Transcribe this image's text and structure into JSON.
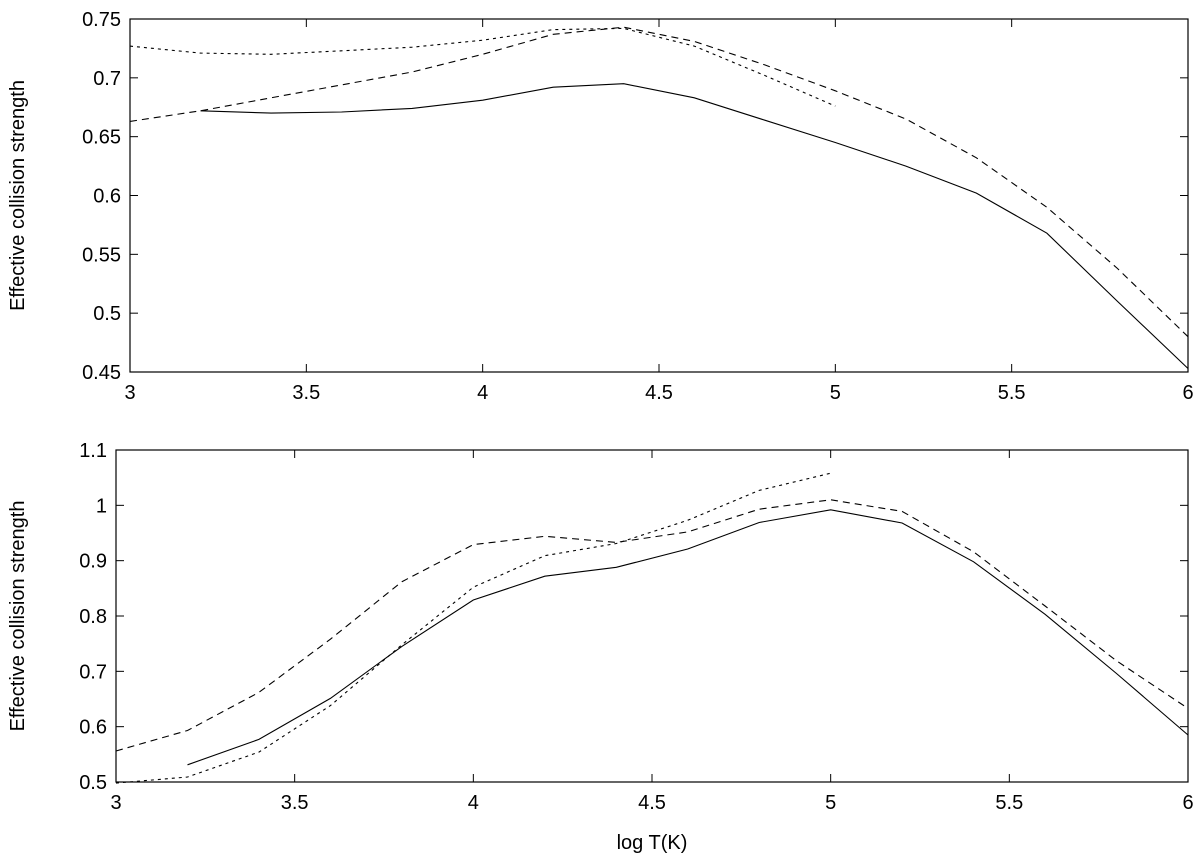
{
  "figure": {
    "xlabel": "log T(K)"
  },
  "chart_data": [
    {
      "type": "line",
      "title": "",
      "xlabel": "",
      "ylabel": "Effective collision strength",
      "xlim": [
        3,
        6
      ],
      "ylim": [
        0.45,
        0.75
      ],
      "xticks": [
        3,
        3.5,
        4,
        4.5,
        5,
        5.5,
        6
      ],
      "xtick_labels": [
        "3",
        "3.5",
        "4",
        "4.5",
        "5",
        "5.5",
        "6"
      ],
      "yticks": [
        0.45,
        0.5,
        0.55,
        0.6,
        0.65,
        0.7,
        0.75
      ],
      "ytick_labels": [
        "0.45",
        "0.5",
        "0.55",
        "0.6",
        "0.65",
        "0.7",
        "0.75"
      ],
      "grid": false,
      "series": [
        {
          "style": "solid",
          "x": [
            3.2,
            3.4,
            3.6,
            3.8,
            4.0,
            4.2,
            4.4,
            4.6,
            4.8,
            5.0,
            5.2,
            5.4,
            5.6,
            5.8,
            6.0
          ],
          "y": [
            0.672,
            0.67,
            0.671,
            0.674,
            0.681,
            0.692,
            0.695,
            0.683,
            0.664,
            0.645,
            0.625,
            0.602,
            0.568,
            0.51,
            0.453
          ]
        },
        {
          "style": "dashed",
          "x": [
            3.0,
            3.2,
            3.4,
            3.6,
            3.8,
            4.0,
            4.2,
            4.4,
            4.6,
            4.8,
            5.0,
            5.2,
            5.4,
            5.6,
            5.8,
            6.0
          ],
          "y": [
            0.663,
            0.672,
            0.683,
            0.694,
            0.705,
            0.72,
            0.737,
            0.743,
            0.731,
            0.711,
            0.689,
            0.665,
            0.632,
            0.59,
            0.538,
            0.48
          ]
        },
        {
          "style": "dotted",
          "x": [
            3.0,
            3.2,
            3.4,
            3.6,
            3.8,
            4.0,
            4.2,
            4.4,
            4.6,
            4.8,
            5.0
          ],
          "y": [
            0.727,
            0.721,
            0.72,
            0.723,
            0.726,
            0.732,
            0.741,
            0.742,
            0.727,
            0.702,
            0.676
          ]
        }
      ]
    },
    {
      "type": "line",
      "title": "",
      "xlabel": "log T(K)",
      "ylabel": "Effective collision strength",
      "xlim": [
        3,
        6
      ],
      "ylim": [
        0.5,
        1.1
      ],
      "xticks": [
        3,
        3.5,
        4,
        4.5,
        5,
        5.5,
        6
      ],
      "xtick_labels": [
        "3",
        "3.5",
        "4",
        "4.5",
        "5",
        "5.5",
        "6"
      ],
      "yticks": [
        0.5,
        0.6,
        0.7,
        0.8,
        0.9,
        1.0,
        1.1
      ],
      "ytick_labels": [
        "0.5",
        "0.6",
        "0.7",
        "0.8",
        "0.9",
        "1",
        "1.1"
      ],
      "grid": false,
      "series": [
        {
          "style": "solid",
          "x": [
            3.2,
            3.4,
            3.6,
            3.8,
            4.0,
            4.2,
            4.4,
            4.6,
            4.8,
            5.0,
            5.2,
            5.4,
            5.6,
            5.8,
            6.0
          ],
          "y": [
            0.531,
            0.577,
            0.651,
            0.745,
            0.829,
            0.872,
            0.888,
            0.921,
            0.969,
            0.992,
            0.968,
            0.898,
            0.803,
            0.696,
            0.585
          ]
        },
        {
          "style": "dashed",
          "x": [
            3.0,
            3.2,
            3.4,
            3.6,
            3.8,
            4.0,
            4.2,
            4.4,
            4.6,
            4.8,
            5.0,
            5.2,
            5.4,
            5.6,
            5.8,
            6.0
          ],
          "y": [
            0.556,
            0.593,
            0.662,
            0.758,
            0.862,
            0.929,
            0.944,
            0.933,
            0.952,
            0.993,
            1.01,
            0.989,
            0.916,
            0.818,
            0.719,
            0.633
          ]
        },
        {
          "style": "dotted",
          "x": [
            3.0,
            3.2,
            3.4,
            3.6,
            3.8,
            4.0,
            4.2,
            4.4,
            4.6,
            4.8,
            5.0
          ],
          "y": [
            0.498,
            0.509,
            0.554,
            0.638,
            0.748,
            0.852,
            0.909,
            0.931,
            0.973,
            1.027,
            1.058
          ]
        }
      ]
    }
  ]
}
